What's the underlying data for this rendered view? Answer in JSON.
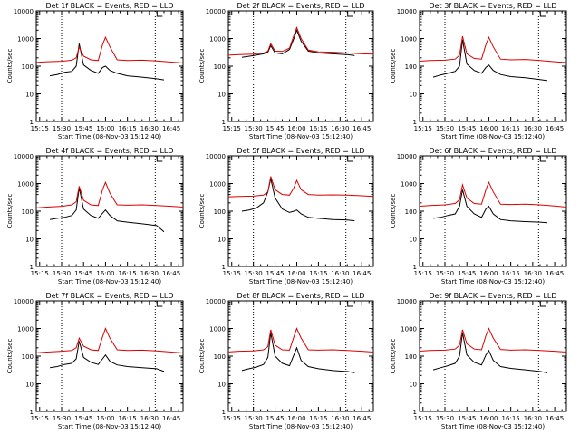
{
  "colors": {
    "black": "#000000",
    "red": "#dd0000",
    "background": "#ffffff"
  },
  "shared": {
    "xlabel": "Start Time (08-Nov-03 15:12:40)",
    "ylabel": "Counts/sec",
    "x_ticks": [
      "15:15",
      "15:30",
      "15:45",
      "16:00",
      "16:15",
      "16:30",
      "16:45"
    ],
    "y_ticks": [
      "1",
      "10",
      "100",
      "1000",
      "10000"
    ]
  },
  "chart_data": [
    {
      "type": "line",
      "title": "Det 1f BLACK = Events, RED = LLD",
      "xlabel": "Start Time (08-Nov-03 15:12:40)",
      "ylabel": "Counts/sec",
      "yscale": "log",
      "ylim": [
        1,
        10000
      ],
      "xlim": [
        "15:12:40",
        "16:53:00"
      ],
      "vlines": [
        "15:30",
        "16:34"
      ],
      "grid": false,
      "series": [
        {
          "color": "black",
          "x": [
            "15:22",
            "15:27",
            "15:32",
            "15:37",
            "15:40",
            "15:42",
            "15:45",
            "15:50",
            "15:55",
            "15:58",
            "16:00",
            "16:03",
            "16:08",
            "16:15",
            "16:25",
            "16:35",
            "16:40"
          ],
          "values": [
            45,
            50,
            60,
            65,
            100,
            650,
            110,
            70,
            55,
            90,
            100,
            70,
            55,
            45,
            40,
            35,
            32
          ]
        },
        {
          "color": "red",
          "x": [
            "15:12",
            "15:20",
            "15:30",
            "15:37",
            "15:40",
            "15:42",
            "15:45",
            "15:50",
            "15:55",
            "15:58",
            "16:00",
            "16:03",
            "16:08",
            "16:15",
            "16:25",
            "16:35",
            "16:45",
            "16:53"
          ],
          "values": [
            135,
            145,
            150,
            165,
            200,
            480,
            230,
            170,
            160,
            600,
            1100,
            500,
            170,
            160,
            165,
            155,
            140,
            130
          ]
        }
      ]
    },
    {
      "type": "line",
      "title": "Det 2f BLACK = Events, RED = LLD",
      "xlabel": "Start Time (08-Nov-03 15:12:40)",
      "ylabel": "Counts/sec",
      "yscale": "log",
      "ylim": [
        1,
        10000
      ],
      "xlim": [
        "15:12:40",
        "16:53:00"
      ],
      "vlines": [
        "15:30",
        "16:34"
      ],
      "grid": false,
      "series": [
        {
          "color": "black",
          "x": [
            "15:22",
            "15:30",
            "15:37",
            "15:40",
            "15:42",
            "15:45",
            "15:50",
            "15:55",
            "15:58",
            "16:00",
            "16:03",
            "16:08",
            "16:15",
            "16:25",
            "16:35",
            "16:40"
          ],
          "values": [
            210,
            240,
            280,
            320,
            550,
            300,
            280,
            400,
            1000,
            2000,
            800,
            350,
            300,
            280,
            260,
            240
          ]
        },
        {
          "color": "red",
          "x": [
            "15:12",
            "15:20",
            "15:30",
            "15:37",
            "15:40",
            "15:42",
            "15:45",
            "15:50",
            "15:55",
            "15:58",
            "16:00",
            "16:03",
            "16:08",
            "16:15",
            "16:25",
            "16:35",
            "16:45",
            "16:53"
          ],
          "values": [
            250,
            260,
            270,
            300,
            350,
            650,
            350,
            340,
            450,
            1300,
            2500,
            1000,
            380,
            330,
            320,
            300,
            280,
            270
          ]
        }
      ]
    },
    {
      "type": "line",
      "title": "Det 3f BLACK = Events, RED = LLD",
      "xlabel": "Start Time (08-Nov-03 15:12:40)",
      "ylabel": "Counts/sec",
      "yscale": "log",
      "ylim": [
        1,
        10000
      ],
      "xlim": [
        "15:12:40",
        "16:53:00"
      ],
      "vlines": [
        "15:30",
        "16:34"
      ],
      "grid": false,
      "series": [
        {
          "color": "black",
          "x": [
            "15:22",
            "15:27",
            "15:32",
            "15:37",
            "15:40",
            "15:42",
            "15:45",
            "15:50",
            "15:55",
            "15:58",
            "16:00",
            "16:03",
            "16:08",
            "16:15",
            "16:25",
            "16:35",
            "16:40"
          ],
          "values": [
            40,
            48,
            55,
            65,
            100,
            900,
            120,
            70,
            55,
            90,
            110,
            70,
            50,
            42,
            38,
            33,
            30
          ]
        },
        {
          "color": "red",
          "x": [
            "15:12",
            "15:20",
            "15:30",
            "15:37",
            "15:40",
            "15:42",
            "15:45",
            "15:50",
            "15:55",
            "15:58",
            "16:00",
            "16:03",
            "16:08",
            "16:15",
            "16:25",
            "16:35",
            "16:45",
            "16:53"
          ],
          "values": [
            150,
            160,
            165,
            180,
            250,
            1200,
            280,
            190,
            180,
            600,
            1100,
            500,
            180,
            170,
            175,
            160,
            145,
            135
          ]
        }
      ]
    },
    {
      "type": "line",
      "title": "Det 4f BLACK = Events, RED = LLD",
      "xlabel": "Start Time (08-Nov-03 15:12:40)",
      "ylabel": "Counts/sec",
      "yscale": "log",
      "ylim": [
        1,
        10000
      ],
      "xlim": [
        "15:12:40",
        "16:53:00"
      ],
      "vlines": [
        "15:30",
        "16:34"
      ],
      "grid": false,
      "series": [
        {
          "color": "black",
          "x": [
            "15:22",
            "15:27",
            "15:32",
            "15:37",
            "15:40",
            "15:42",
            "15:45",
            "15:50",
            "15:55",
            "15:58",
            "16:00",
            "16:03",
            "16:08",
            "16:15",
            "16:25",
            "16:35",
            "16:40"
          ],
          "values": [
            50,
            55,
            60,
            70,
            110,
            700,
            120,
            70,
            55,
            85,
            110,
            70,
            45,
            40,
            35,
            30,
            18
          ]
        },
        {
          "color": "red",
          "x": [
            "15:12",
            "15:20",
            "15:30",
            "15:37",
            "15:40",
            "15:42",
            "15:45",
            "15:50",
            "15:55",
            "15:58",
            "16:00",
            "16:03",
            "16:08",
            "16:15",
            "16:25",
            "16:35",
            "16:45",
            "16:53"
          ],
          "values": [
            130,
            140,
            150,
            170,
            220,
            800,
            250,
            170,
            160,
            600,
            1100,
            450,
            170,
            165,
            170,
            160,
            150,
            140
          ]
        }
      ]
    },
    {
      "type": "line",
      "title": "Det 5f BLACK = Events, RED = LLD",
      "xlabel": "Start Time (08-Nov-03 15:12:40)",
      "ylabel": "Counts/sec",
      "yscale": "log",
      "ylim": [
        1,
        10000
      ],
      "xlim": [
        "15:12:40",
        "16:53:00"
      ],
      "vlines": [
        "15:30",
        "16:34"
      ],
      "grid": false,
      "series": [
        {
          "color": "black",
          "x": [
            "15:22",
            "15:27",
            "15:32",
            "15:37",
            "15:40",
            "15:42",
            "15:45",
            "15:50",
            "15:55",
            "15:58",
            "16:00",
            "16:03",
            "16:08",
            "16:15",
            "16:25",
            "16:35",
            "16:40"
          ],
          "values": [
            100,
            110,
            130,
            200,
            500,
            1500,
            300,
            120,
            90,
            100,
            110,
            80,
            60,
            55,
            50,
            48,
            45
          ]
        },
        {
          "color": "red",
          "x": [
            "15:12",
            "15:20",
            "15:30",
            "15:37",
            "15:40",
            "15:42",
            "15:45",
            "15:50",
            "15:55",
            "15:58",
            "16:00",
            "16:03",
            "16:08",
            "16:15",
            "16:25",
            "16:35",
            "16:45",
            "16:53"
          ],
          "values": [
            330,
            340,
            350,
            380,
            500,
            1800,
            600,
            400,
            380,
            700,
            1300,
            600,
            400,
            380,
            390,
            380,
            360,
            340
          ]
        }
      ]
    },
    {
      "type": "line",
      "title": "Det 6f BLACK = Events, RED = LLD",
      "xlabel": "Start Time (08-Nov-03 15:12:40)",
      "ylabel": "Counts/sec",
      "yscale": "log",
      "ylim": [
        1,
        10000
      ],
      "xlim": [
        "15:12:40",
        "16:53:00"
      ],
      "vlines": [
        "15:30",
        "16:34"
      ],
      "grid": false,
      "series": [
        {
          "color": "black",
          "x": [
            "15:22",
            "15:27",
            "15:32",
            "15:37",
            "15:40",
            "15:42",
            "15:45",
            "15:50",
            "15:55",
            "15:58",
            "16:00",
            "16:03",
            "16:08",
            "16:15",
            "16:25",
            "16:35",
            "16:40"
          ],
          "values": [
            55,
            60,
            70,
            80,
            150,
            600,
            150,
            80,
            60,
            120,
            150,
            80,
            50,
            45,
            42,
            40,
            38
          ]
        },
        {
          "color": "red",
          "x": [
            "15:12",
            "15:20",
            "15:30",
            "15:37",
            "15:40",
            "15:42",
            "15:45",
            "15:50",
            "15:55",
            "15:58",
            "16:00",
            "16:03",
            "16:08",
            "16:15",
            "16:25",
            "16:35",
            "16:45",
            "16:53"
          ],
          "values": [
            150,
            160,
            170,
            190,
            260,
            900,
            300,
            190,
            180,
            600,
            1100,
            500,
            180,
            175,
            180,
            170,
            155,
            140
          ]
        }
      ]
    },
    {
      "type": "line",
      "title": "Det 7f BLACK = Events, RED = LLD",
      "xlabel": "Start Time (08-Nov-03 15:12:40)",
      "ylabel": "Counts/sec",
      "yscale": "log",
      "ylim": [
        1,
        10000
      ],
      "xlim": [
        "15:12:40",
        "16:53:00"
      ],
      "vlines": [
        "15:30",
        "16:34"
      ],
      "grid": false,
      "series": [
        {
          "color": "black",
          "x": [
            "15:22",
            "15:27",
            "15:32",
            "15:37",
            "15:40",
            "15:42",
            "15:45",
            "15:50",
            "15:55",
            "15:58",
            "16:00",
            "16:03",
            "16:08",
            "16:15",
            "16:25",
            "16:35",
            "16:40"
          ],
          "values": [
            38,
            42,
            50,
            55,
            80,
            350,
            90,
            60,
            50,
            80,
            110,
            65,
            48,
            42,
            38,
            35,
            28
          ]
        },
        {
          "color": "red",
          "x": [
            "15:12",
            "15:20",
            "15:30",
            "15:37",
            "15:40",
            "15:42",
            "15:45",
            "15:50",
            "15:55",
            "15:58",
            "16:00",
            "16:03",
            "16:08",
            "16:15",
            "16:25",
            "16:35",
            "16:45",
            "16:53"
          ],
          "values": [
            130,
            140,
            150,
            160,
            200,
            450,
            230,
            170,
            160,
            500,
            1000,
            450,
            170,
            160,
            165,
            155,
            140,
            130
          ]
        }
      ]
    },
    {
      "type": "line",
      "title": "Det 8f BLACK = Events, RED = LLD",
      "xlabel": "Start Time (08-Nov-03 15:12:40)",
      "ylabel": "Counts/sec",
      "yscale": "log",
      "ylim": [
        1,
        10000
      ],
      "xlim": [
        "15:12:40",
        "16:53:00"
      ],
      "vlines": [
        "15:30",
        "16:34"
      ],
      "grid": false,
      "series": [
        {
          "color": "black",
          "x": [
            "15:22",
            "15:27",
            "15:32",
            "15:37",
            "15:40",
            "15:42",
            "15:45",
            "15:50",
            "15:55",
            "15:58",
            "16:00",
            "16:03",
            "16:08",
            "16:15",
            "16:25",
            "16:35",
            "16:40"
          ],
          "values": [
            30,
            35,
            40,
            50,
            90,
            700,
            100,
            55,
            45,
            110,
            200,
            70,
            42,
            35,
            30,
            28,
            25
          ]
        },
        {
          "color": "red",
          "x": [
            "15:12",
            "15:20",
            "15:30",
            "15:37",
            "15:40",
            "15:42",
            "15:45",
            "15:50",
            "15:55",
            "15:58",
            "16:00",
            "16:03",
            "16:08",
            "16:15",
            "16:25",
            "16:35",
            "16:45",
            "16:53"
          ],
          "values": [
            140,
            150,
            155,
            170,
            220,
            900,
            250,
            170,
            165,
            500,
            1000,
            450,
            170,
            165,
            170,
            160,
            150,
            140
          ]
        }
      ]
    },
    {
      "type": "line",
      "title": "Det 9f BLACK = Events, RED = LLD",
      "xlabel": "Start Time (08-Nov-03 15:12:40)",
      "ylabel": "Counts/sec",
      "yscale": "log",
      "ylim": [
        1,
        10000
      ],
      "xlim": [
        "15:12:40",
        "16:53:00"
      ],
      "vlines": [
        "15:30",
        "16:34"
      ],
      "grid": false,
      "series": [
        {
          "color": "black",
          "x": [
            "15:22",
            "15:27",
            "15:32",
            "15:37",
            "15:40",
            "15:42",
            "15:45",
            "15:50",
            "15:55",
            "15:58",
            "16:00",
            "16:03",
            "16:08",
            "16:15",
            "16:25",
            "16:35",
            "16:40"
          ],
          "values": [
            32,
            38,
            45,
            55,
            100,
            700,
            110,
            60,
            48,
            110,
            160,
            70,
            42,
            36,
            32,
            28,
            25
          ]
        },
        {
          "color": "red",
          "x": [
            "15:12",
            "15:20",
            "15:30",
            "15:37",
            "15:40",
            "15:42",
            "15:45",
            "15:50",
            "15:55",
            "15:58",
            "16:00",
            "16:03",
            "16:08",
            "16:15",
            "16:25",
            "16:35",
            "16:45",
            "16:53"
          ],
          "values": [
            150,
            160,
            165,
            180,
            250,
            900,
            280,
            180,
            170,
            550,
            1000,
            450,
            175,
            165,
            170,
            160,
            150,
            140
          ]
        }
      ]
    }
  ]
}
